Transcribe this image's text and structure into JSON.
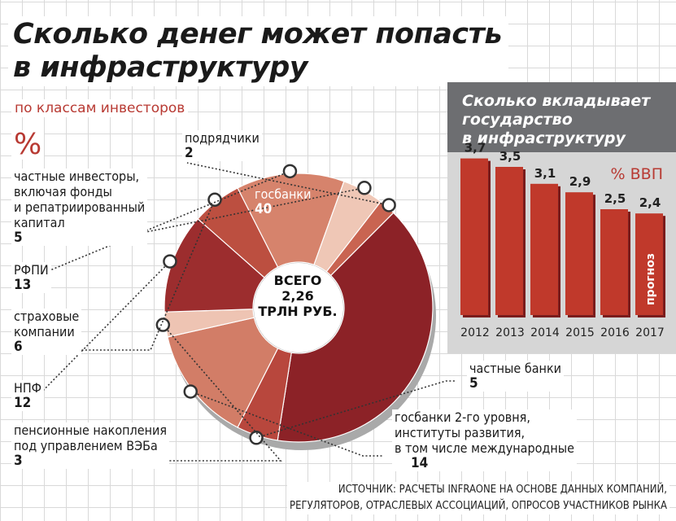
{
  "title_lines": [
    "Сколько денег может попасть",
    "в инфраструктуру"
  ],
  "subtitle": "по классам инвесторов",
  "unit_percent": "%",
  "chart_data": [
    {
      "type": "pie",
      "title": "Сколько денег может попасть в инфраструктуру",
      "subtitle": "по классам инвесторов",
      "unit": "%",
      "center_text": [
        "ВСЕГО",
        "2,26",
        "ТРЛН РУБ."
      ],
      "slices": [
        {
          "label": [
            "госбанки"
          ],
          "value": 40,
          "color": "#8c2227"
        },
        {
          "label": [
            "частные банки"
          ],
          "value": 5,
          "color": "#b8473d"
        },
        {
          "label": [
            "госбанки 2-го уровня,",
            "институты развития,",
            "в том числе международные"
          ],
          "value": 14,
          "color": "#d27d67"
        },
        {
          "label": [
            "пенсионные накопления",
            "под управлением ВЭБа"
          ],
          "value": 3,
          "color": "#eec4b3"
        },
        {
          "label": [
            "НПФ"
          ],
          "value": 12,
          "color": "#9c2d2e"
        },
        {
          "label": [
            "страховые",
            "компании"
          ],
          "value": 6,
          "color": "#bc4f40"
        },
        {
          "label": [
            "РФПИ"
          ],
          "value": 13,
          "color": "#d6836c"
        },
        {
          "label": [
            "частные инвесторы,",
            "включая фонды",
            "и репатриированный",
            "капитал"
          ],
          "value": 5,
          "color": "#efc7b6"
        },
        {
          "label": [
            "подрядчики"
          ],
          "value": 2,
          "color": "#c96451"
        }
      ]
    },
    {
      "type": "bar",
      "title": "Сколько вкладывает государство в инфраструктуру",
      "unit": "% ВВП",
      "categories": [
        "2012",
        "2013",
        "2014",
        "2015",
        "2016",
        "2017"
      ],
      "values": [
        3.7,
        3.5,
        3.1,
        2.9,
        2.5,
        2.4
      ],
      "value_labels": [
        "3,7",
        "3,5",
        "3,1",
        "2,9",
        "2,5",
        "2,4"
      ],
      "bar_note": "прогноз",
      "note_category": "2017",
      "colors": {
        "bar": "#c0392b",
        "bar_shadow": "#7a1c1c",
        "panel": "#d6d6d6",
        "header": "#6d6e71"
      }
    }
  ],
  "gov_title_lines": [
    "Сколько вкладывает",
    "государство",
    "в инфраструктуру"
  ],
  "source_lines": [
    "ИСТОЧНИК: РАСЧЕТЫ INFRAONE НА ОСНОВЕ ДАННЫХ КОМПАНИЙ,",
    "РЕГУЛЯТОРОВ, ОТРАСЛЕВЫХ АССОЦИАЦИЙ, ОПРОСОВ УЧАСТНИКОВ РЫНКА"
  ]
}
